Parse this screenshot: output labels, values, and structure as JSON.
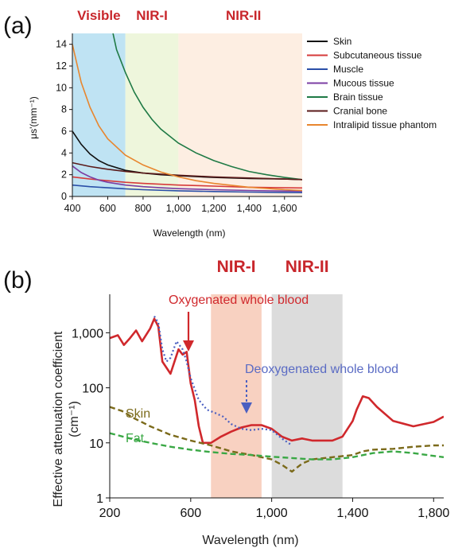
{
  "chart_data": [
    {
      "panel": "(a)",
      "type": "line",
      "regions": [
        {
          "label": "Visible",
          "from": 400,
          "to": 700,
          "color": "#bfe3f3"
        },
        {
          "label": "NIR-I",
          "from": 700,
          "to": 1000,
          "color": "#eef6dc"
        },
        {
          "label": "NIR-II",
          "from": 1000,
          "to": 1700,
          "color": "#fdeee2"
        }
      ],
      "xlabel": "Wavelength (nm)",
      "ylabel": "μs'(mm⁻¹)",
      "xlim": [
        400,
        1700
      ],
      "ylim": [
        0,
        15
      ],
      "xticks": [
        400,
        600,
        800,
        1000,
        1200,
        1400,
        1600
      ],
      "xtick_labels": [
        "400",
        "600",
        "800",
        "1,000",
        "1,200",
        "1,400",
        "1,600"
      ],
      "yticks": [
        0,
        2,
        4,
        6,
        8,
        10,
        12,
        14
      ],
      "ytick_labels": [
        "0",
        "2",
        "4",
        "6",
        "8",
        "10",
        "12",
        "14"
      ],
      "legend_position": "right",
      "series": [
        {
          "name": "Skin",
          "color": "#111111",
          "x": [
            400,
            450,
            500,
            550,
            600,
            700,
            800,
            900,
            1000,
            1200,
            1400,
            1600,
            1700
          ],
          "y": [
            6.0,
            4.8,
            3.9,
            3.3,
            2.9,
            2.4,
            2.15,
            2.0,
            1.9,
            1.75,
            1.65,
            1.6,
            1.55
          ]
        },
        {
          "name": "Subcutaneous tissue",
          "color": "#d63a3a",
          "x": [
            400,
            500,
            600,
            700,
            800,
            1000,
            1200,
            1400,
            1600,
            1700
          ],
          "y": [
            1.8,
            1.6,
            1.45,
            1.3,
            1.2,
            1.05,
            0.95,
            0.85,
            0.8,
            0.78
          ]
        },
        {
          "name": "Muscle",
          "color": "#2a4fa8",
          "x": [
            400,
            500,
            600,
            700,
            800,
            1000,
            1200,
            1400,
            1600,
            1700
          ],
          "y": [
            1.05,
            0.9,
            0.8,
            0.7,
            0.62,
            0.52,
            0.45,
            0.4,
            0.36,
            0.35
          ]
        },
        {
          "name": "Mucous tissue",
          "color": "#7b3ea3",
          "x": [
            400,
            450,
            500,
            550,
            600,
            700,
            800,
            900,
            1000,
            1200,
            1400,
            1600,
            1700
          ],
          "y": [
            2.8,
            2.2,
            1.8,
            1.5,
            1.3,
            1.05,
            0.9,
            0.8,
            0.72,
            0.62,
            0.55,
            0.5,
            0.48
          ]
        },
        {
          "name": "Brain tissue",
          "color": "#1f7a45",
          "x": [
            630,
            650,
            700,
            750,
            800,
            850,
            900,
            1000,
            1100,
            1200,
            1300,
            1400,
            1500,
            1600,
            1700
          ],
          "y": [
            15.0,
            13.5,
            11.4,
            9.6,
            8.2,
            7.1,
            6.2,
            4.9,
            4.0,
            3.3,
            2.75,
            2.3,
            2.0,
            1.75,
            1.55
          ]
        },
        {
          "name": "Cranial bone",
          "color": "#5a1a1a",
          "x": [
            400,
            500,
            600,
            700,
            800,
            1000,
            1200,
            1400,
            1600,
            1700
          ],
          "y": [
            3.1,
            2.75,
            2.5,
            2.3,
            2.15,
            1.95,
            1.8,
            1.7,
            1.6,
            1.55
          ]
        },
        {
          "name": "Intralipid tissue phantom",
          "color": "#e8862e",
          "x": [
            400,
            450,
            500,
            550,
            600,
            700,
            800,
            900,
            1000,
            1100,
            1200,
            1400,
            1600,
            1700
          ],
          "y": [
            14.0,
            10.5,
            8.2,
            6.5,
            5.3,
            3.8,
            2.9,
            2.25,
            1.8,
            1.45,
            1.2,
            0.85,
            0.62,
            0.55
          ]
        }
      ]
    },
    {
      "panel": "(b)",
      "type": "line",
      "regions": [
        {
          "label": "NIR-I",
          "from": 700,
          "to": 950,
          "color": "#f7c9b6"
        },
        {
          "label": "NIR-II",
          "from": 1000,
          "to": 1350,
          "color": "#d6d6d6"
        }
      ],
      "xlabel": "Wavelength (nm)",
      "ylabel": "Effective attenuation coefficient",
      "ylabel_unit": "(cm⁻¹)",
      "xlim": [
        200,
        1850
      ],
      "ylim": [
        1,
        5000
      ],
      "yscale": "log",
      "xticks": [
        200,
        600,
        1000,
        1400,
        1800
      ],
      "xtick_labels": [
        "200",
        "600",
        "1,000",
        "1,400",
        "1,800"
      ],
      "yticks": [
        1,
        10,
        100,
        1000
      ],
      "ytick_labels": [
        "1",
        "10",
        "100",
        "1,000"
      ],
      "series": [
        {
          "name": "Oxygenated whole blood",
          "color": "#d0282c",
          "style": "solid",
          "x": [
            200,
            240,
            270,
            300,
            330,
            360,
            400,
            420,
            440,
            460,
            500,
            540,
            560,
            580,
            600,
            620,
            640,
            660,
            700,
            750,
            800,
            850,
            900,
            950,
            1000,
            1050,
            1100,
            1150,
            1200,
            1250,
            1300,
            1350,
            1400,
            1420,
            1450,
            1480,
            1520,
            1600,
            1700,
            1800,
            1850
          ],
          "y": [
            800,
            900,
            600,
            800,
            1100,
            700,
            1200,
            1800,
            1300,
            300,
            180,
            500,
            400,
            450,
            120,
            60,
            20,
            10,
            10,
            13,
            16,
            19,
            21,
            21,
            18,
            13,
            11,
            12,
            11,
            11,
            11,
            13,
            25,
            40,
            70,
            65,
            45,
            25,
            20,
            24,
            30
          ]
        },
        {
          "name": "Deoxygenated whole blood",
          "color": "#4a5fc1",
          "style": "dotted",
          "x": [
            420,
            440,
            460,
            480,
            500,
            530,
            560,
            580,
            600,
            640,
            680,
            720,
            760,
            800,
            850,
            900,
            950,
            1000,
            1050,
            1100
          ],
          "y": [
            2000,
            1500,
            500,
            300,
            350,
            700,
            500,
            300,
            150,
            60,
            40,
            35,
            30,
            22,
            18,
            17,
            18,
            17,
            12,
            9
          ]
        },
        {
          "name": "Skin",
          "color": "#7b6a1a",
          "style": "dashed",
          "x": [
            200,
            260,
            320,
            400,
            500,
            600,
            700,
            800,
            900,
            1000,
            1050,
            1100,
            1150,
            1200,
            1300,
            1400,
            1450,
            1500,
            1600,
            1700,
            1800,
            1850
          ],
          "y": [
            45,
            38,
            28,
            20,
            14,
            11,
            9,
            7,
            6,
            5,
            4,
            3,
            4.2,
            5,
            5.5,
            6,
            7,
            7.5,
            7.8,
            8.5,
            9,
            9
          ]
        },
        {
          "name": "Fat",
          "color": "#3aa845",
          "style": "dashed",
          "x": [
            200,
            300,
            400,
            500,
            600,
            700,
            800,
            900,
            1000,
            1100,
            1200,
            1300,
            1400,
            1500,
            1600,
            1700,
            1800,
            1850
          ],
          "y": [
            15,
            12,
            10,
            8.5,
            7.5,
            6.8,
            6.3,
            6,
            5.6,
            5.3,
            5,
            5,
            5.5,
            6.5,
            7,
            6.5,
            5.8,
            5.5
          ]
        }
      ],
      "annotations": [
        {
          "text": "Oxygenated whole blood",
          "color": "#d0282c"
        },
        {
          "text": "Deoxygenated whole blood",
          "color": "#5a6bc4"
        },
        {
          "text": "Skin",
          "color": "#7b6a1a"
        },
        {
          "text": "Fat",
          "color": "#3aa845"
        }
      ]
    }
  ]
}
